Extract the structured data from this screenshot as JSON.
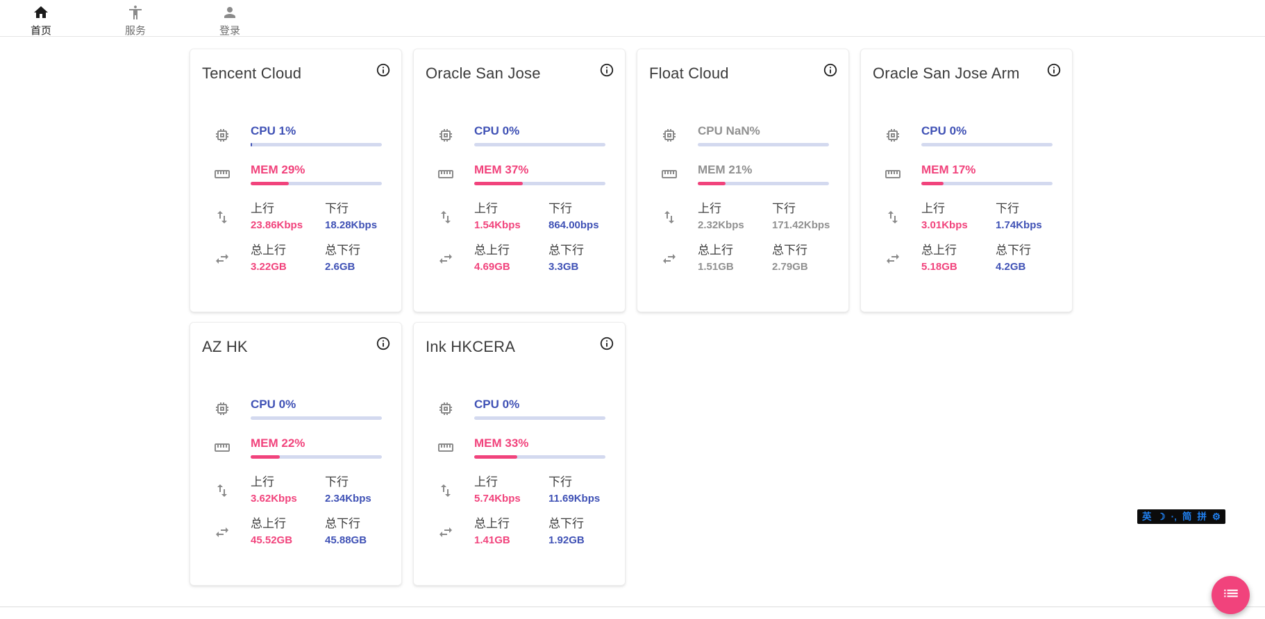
{
  "nav": {
    "items": [
      {
        "label": "首页",
        "icon": "home-icon",
        "active": true
      },
      {
        "label": "服务",
        "icon": "accessibility-icon",
        "active": false
      }
    ],
    "login": {
      "label": "登录",
      "icon": "person-icon"
    }
  },
  "labels": {
    "up": "上行",
    "down": "下行",
    "total_up": "总上行",
    "total_down": "总下行"
  },
  "colors": {
    "accent_blue": "#3f51b5",
    "accent_pink": "#f1437c",
    "bar_track": "#d3d9ef",
    "muted_text": "#909090",
    "fab_pink": "#f1437c",
    "ime_blue": "#2080f0"
  },
  "cards": [
    {
      "name": "Tencent Cloud",
      "cpu_text": "CPU 1%",
      "cpu_pct": 1,
      "mem_text": "MEM 29%",
      "mem_pct": 29,
      "up": "23.86Kbps",
      "down": "18.28Kbps",
      "total_up": "3.22GB",
      "total_down": "2.6GB",
      "muted": false
    },
    {
      "name": "Oracle San Jose",
      "cpu_text": "CPU 0%",
      "cpu_pct": 0,
      "mem_text": "MEM 37%",
      "mem_pct": 37,
      "up": "1.54Kbps",
      "down": "864.00bps",
      "total_up": "4.69GB",
      "total_down": "3.3GB",
      "muted": false
    },
    {
      "name": "Float Cloud",
      "cpu_text": "CPU NaN%",
      "cpu_pct": 0,
      "mem_text": "MEM 21%",
      "mem_pct": 21,
      "up": "2.32Kbps",
      "down": "171.42Kbps",
      "total_up": "1.51GB",
      "total_down": "2.79GB",
      "muted": true
    },
    {
      "name": "Oracle San Jose Arm",
      "cpu_text": "CPU 0%",
      "cpu_pct": 0,
      "mem_text": "MEM 17%",
      "mem_pct": 17,
      "up": "3.01Kbps",
      "down": "1.74Kbps",
      "total_up": "5.18GB",
      "total_down": "4.2GB",
      "muted": false
    },
    {
      "name": "AZ HK",
      "cpu_text": "CPU 0%",
      "cpu_pct": 0,
      "mem_text": "MEM 22%",
      "mem_pct": 22,
      "up": "3.62Kbps",
      "down": "2.34Kbps",
      "total_up": "45.52GB",
      "total_down": "45.88GB",
      "muted": false
    },
    {
      "name": "Ink HKCERA",
      "cpu_text": "CPU 0%",
      "cpu_pct": 0,
      "mem_text": "MEM 33%",
      "mem_pct": 33,
      "up": "5.74Kbps",
      "down": "11.69Kbps",
      "total_up": "1.41GB",
      "total_down": "1.92GB",
      "muted": false
    }
  ],
  "ime_bar": {
    "items": [
      "英",
      "☽",
      "·‚",
      "简",
      "拼",
      "⚙"
    ]
  },
  "fab": {
    "icon": "list-icon"
  }
}
